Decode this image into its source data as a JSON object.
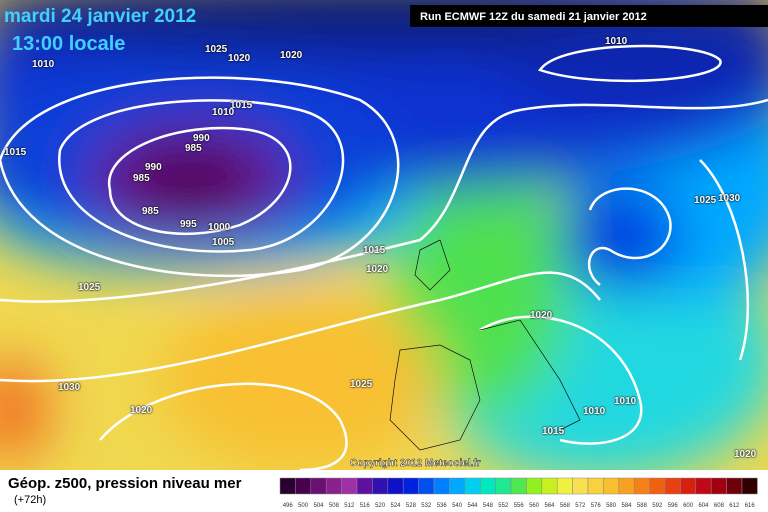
{
  "header": {
    "date": "mardi 24 janvier 2012",
    "time": "13:00 locale",
    "run": "Run ECMWF 12Z du samedi 21 janvier 2012"
  },
  "isobars": [
    "1025",
    "1020",
    "1020",
    "1010",
    "1010",
    "1015",
    "1010",
    "990",
    "985",
    "990",
    "985",
    "985",
    "995",
    "1000",
    "1005",
    "1015",
    "1015",
    "1020",
    "1025",
    "1020",
    "1025",
    "1030",
    "1030",
    "1025",
    "1020",
    "1010",
    "1010",
    "1015",
    "1020"
  ],
  "copyright": "Copyright 2012 Meteociel.fr",
  "footer": {
    "title": "Géop. z500, pression niveau mer",
    "lead": "(+72h)"
  },
  "legend": {
    "levels": [
      496,
      500,
      504,
      508,
      512,
      516,
      520,
      524,
      528,
      532,
      536,
      540,
      544,
      548,
      552,
      556,
      560,
      564,
      568,
      572,
      576,
      580,
      584,
      588,
      592,
      596,
      600,
      604,
      608,
      612,
      616
    ],
    "colors": [
      "#2a0030",
      "#48004f",
      "#6a1070",
      "#8a2090",
      "#a030a8",
      "#6010a0",
      "#3010b0",
      "#1010c8",
      "#0020e0",
      "#0050f0",
      "#0080ff",
      "#00a8ff",
      "#00d0f0",
      "#00e8c0",
      "#20e890",
      "#50e850",
      "#90f020",
      "#c8f020",
      "#f0f040",
      "#f8e050",
      "#f8d040",
      "#f8c030",
      "#f8a020",
      "#f88018",
      "#f06010",
      "#e84010",
      "#d82010",
      "#c00818",
      "#a00010",
      "#700008",
      "#300000"
    ]
  }
}
